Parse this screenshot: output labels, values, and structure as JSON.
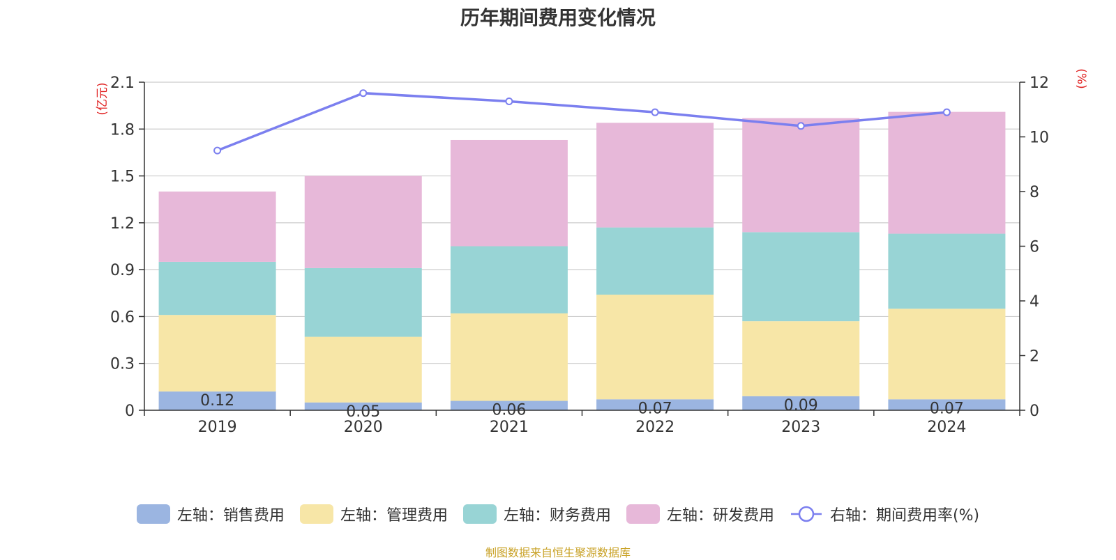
{
  "title": "历年期间费用变化情况",
  "footer": "制图数据来自恒生聚源数据库",
  "chart_data": {
    "type": "bar",
    "stacked": true,
    "categories": [
      "2019",
      "2020",
      "2021",
      "2022",
      "2023",
      "2024"
    ],
    "left_axis": {
      "unit": "(亿元)",
      "ticks": [
        "0",
        "0.3",
        "0.6",
        "0.9",
        "1.2",
        "1.5",
        "1.8",
        "2.1"
      ],
      "range": [
        0,
        2.1
      ]
    },
    "right_axis": {
      "unit": "(%)",
      "ticks": [
        "0",
        "2",
        "4",
        "6",
        "8",
        "10",
        "12"
      ],
      "range": [
        0,
        12
      ]
    },
    "series": [
      {
        "name": "左轴：销售费用",
        "axis": "left",
        "color": "#9bb5e1",
        "values": [
          0.12,
          0.05,
          0.06,
          0.07,
          0.09,
          0.07
        ],
        "labels": [
          "0.12",
          "0.05",
          "0.06",
          "0.07",
          "0.09",
          "0.07"
        ]
      },
      {
        "name": "左轴：管理费用",
        "axis": "left",
        "color": "#f7e6a7",
        "values": [
          0.49,
          0.42,
          0.56,
          0.67,
          0.48,
          0.58
        ]
      },
      {
        "name": "左轴：财务费用",
        "axis": "left",
        "color": "#98d4d5",
        "values": [
          0.34,
          0.44,
          0.43,
          0.43,
          0.57,
          0.48
        ]
      },
      {
        "name": "左轴：研发费用",
        "axis": "left",
        "color": "#e7b8d9",
        "values": [
          0.45,
          0.59,
          0.68,
          0.67,
          0.73,
          0.78
        ]
      }
    ],
    "line_series": {
      "name": "右轴：期间费用率(%)",
      "axis": "right",
      "color": "#7b7fef",
      "values": [
        9.5,
        11.6,
        11.3,
        10.9,
        10.4,
        10.9
      ]
    },
    "grid": true,
    "legend_position": "bottom"
  }
}
